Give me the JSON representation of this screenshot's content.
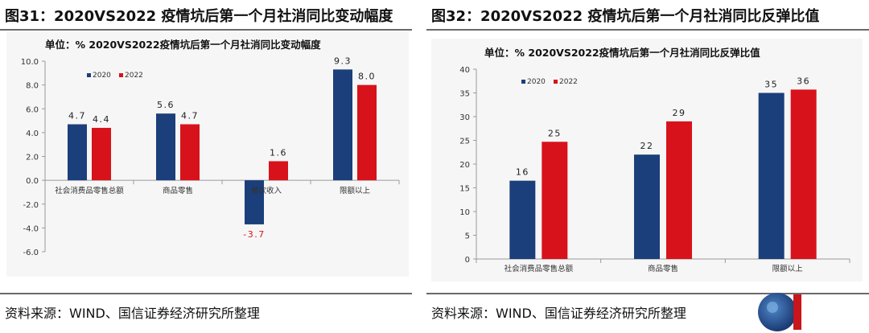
{
  "left": {
    "figure_title": "图31：2020VS2022 疫情坑后第一个月社消同比变动幅度",
    "source": "资料来源：WIND、国信证券经济研究所整理"
  },
  "right": {
    "figure_title": "图32：2020VS2022 疫情坑后第一个月社消同比反弹比值",
    "source": "资料来源：WIND、国信证券经济研究所整理"
  },
  "colors": {
    "s2020": "#1b3f7a",
    "s2022": "#d8121b"
  },
  "chart_data": [
    {
      "type": "bar",
      "title": "单位：%   2020VS2022疫情坑后第一个月社消同比变动幅度",
      "categories": [
        "社会消费品零售总额",
        "商品零售",
        "餐饮收入",
        "限额以上"
      ],
      "series": [
        {
          "name": "2020",
          "values": [
            4.7,
            5.6,
            -3.7,
            9.3
          ],
          "labels": [
            "4.7",
            "5.6",
            "-3.7",
            "9.3"
          ]
        },
        {
          "name": "2022",
          "values": [
            4.4,
            4.7,
            1.6,
            8.0
          ],
          "labels": [
            "4.4",
            "4.7",
            "1.6",
            "8.0"
          ]
        }
      ],
      "ylim": [
        -6,
        10
      ],
      "yticks": [
        "10.0",
        "8.0",
        "6.0",
        "4.0",
        "2.0",
        "0.0",
        "-2.0",
        "-4.0",
        "-6.0"
      ],
      "legend": "top-left",
      "grid": false
    },
    {
      "type": "bar",
      "title": "单位：%   2020VS2022疫情坑后第一个月社消同比反弹比值",
      "categories": [
        "社会消费品零售总额",
        "商品零售",
        "限额以上"
      ],
      "series": [
        {
          "name": "2020",
          "values": [
            16.5,
            22,
            35
          ],
          "labels": [
            "16",
            "22",
            "35"
          ]
        },
        {
          "name": "2022",
          "values": [
            24.7,
            29,
            35.7
          ],
          "labels": [
            "25",
            "29",
            "36"
          ]
        }
      ],
      "ylim": [
        0,
        40
      ],
      "yticks": [
        "40",
        "35",
        "30",
        "25",
        "20",
        "15",
        "10",
        "5",
        "0"
      ],
      "legend": "top-left",
      "grid": false
    }
  ]
}
